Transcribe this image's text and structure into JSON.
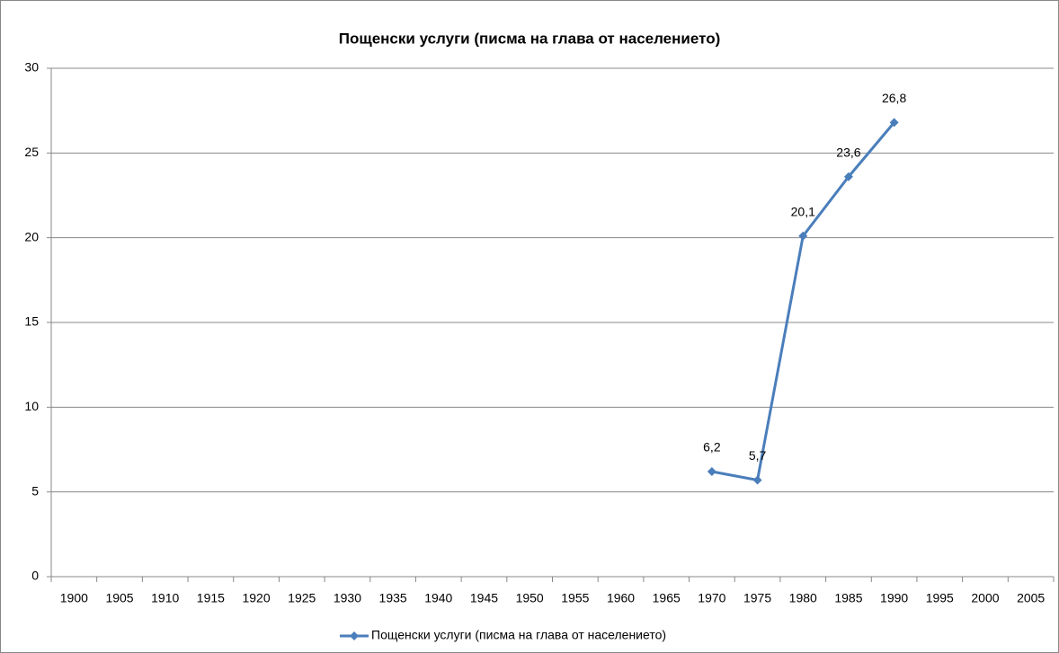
{
  "chart_data": {
    "type": "line",
    "title": "Пощенски услуги (писма на глава от населението)",
    "categories": [
      "1900",
      "1905",
      "1910",
      "1915",
      "1920",
      "1925",
      "1930",
      "1935",
      "1940",
      "1945",
      "1950",
      "1955",
      "1960",
      "1965",
      "1970",
      "1975",
      "1980",
      "1985",
      "1990",
      "1995",
      "2000",
      "2005"
    ],
    "series": [
      {
        "name": "Пощенски услуги (писма на глава от населението)",
        "color": "#4a7ebb",
        "values": [
          null,
          null,
          null,
          null,
          null,
          null,
          null,
          null,
          null,
          null,
          null,
          null,
          null,
          null,
          6.2,
          5.7,
          20.1,
          23.6,
          26.8,
          null,
          null,
          null
        ],
        "value_labels": [
          null,
          null,
          null,
          null,
          null,
          null,
          null,
          null,
          null,
          null,
          null,
          null,
          null,
          null,
          "6,2",
          "5,7",
          "20,1",
          "23,6",
          "26,8",
          null,
          null,
          null
        ]
      }
    ],
    "ylim": [
      0,
      30
    ],
    "yticks": [
      0,
      5,
      10,
      15,
      20,
      25,
      30
    ],
    "grid": true,
    "legend": "bottom"
  }
}
